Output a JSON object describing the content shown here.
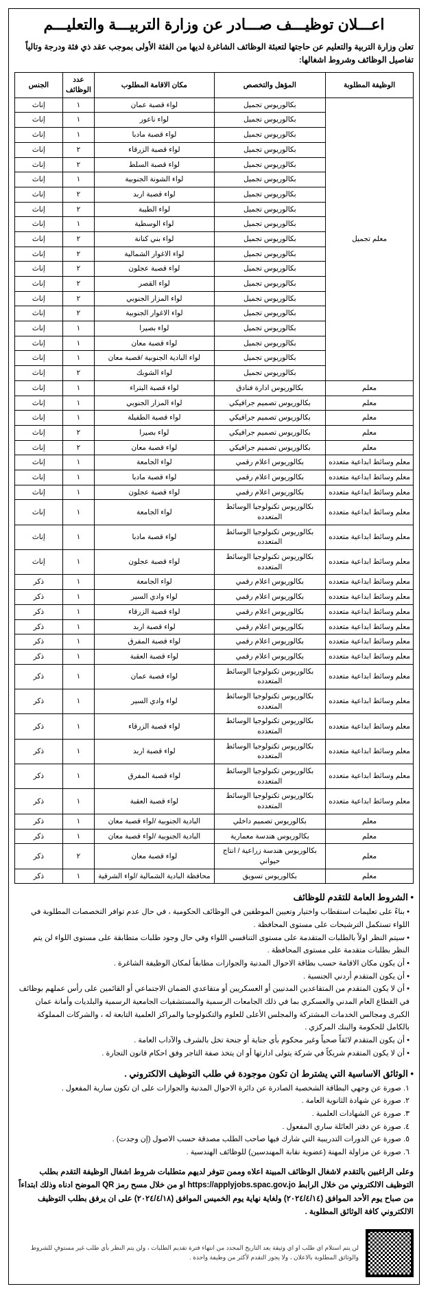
{
  "title": "اعـــلان توظيـــف صـــادر عن وزارة التربيـــة والتعليـــم",
  "intro": "تعلن وزارة التربية والتعليم عن حاجتها لتعبئة الوظائف الشاغرة لديها من الفئة الأولى بموجب عقد ذي فئة ودرجة وتالياً تفاصيل الوظائف وشروط اشغالها:",
  "headers": {
    "position": "الوظيفة المطلوبة",
    "qualification": "المؤهل والتخصص",
    "location": "مكان الاقامة المطلوب",
    "count": "عدد الوظائف",
    "gender": "الجنس"
  },
  "groups": [
    {
      "position": "معلم تجميل",
      "rows": [
        {
          "qual": "بكالوريوس تجميل",
          "loc": "لواء قصبة عمان",
          "cnt": "١",
          "gen": "إناث"
        },
        {
          "qual": "بكالوريوس تجميل",
          "loc": "لواء ناعور",
          "cnt": "١",
          "gen": "إناث"
        },
        {
          "qual": "بكالوريوس تجميل",
          "loc": "لواء قصبة مادبا",
          "cnt": "١",
          "gen": "إناث"
        },
        {
          "qual": "بكالوريوس تجميل",
          "loc": "لواء قصبة الزرقاء",
          "cnt": "٢",
          "gen": "إناث"
        },
        {
          "qual": "بكالوريوس تجميل",
          "loc": "لواء قصبة السلط",
          "cnt": "٢",
          "gen": "إناث"
        },
        {
          "qual": "بكالوريوس تجميل",
          "loc": "لواء الشونة الجنوبية",
          "cnt": "١",
          "gen": "إناث"
        },
        {
          "qual": "بكالوريوس تجميل",
          "loc": "لواء قصبة اربد",
          "cnt": "٢",
          "gen": "إناث"
        },
        {
          "qual": "بكالوريوس تجميل",
          "loc": "لواء الطيبة",
          "cnt": "٢",
          "gen": "إناث"
        },
        {
          "qual": "بكالوريوس تجميل",
          "loc": "لواء الوسطية",
          "cnt": "١",
          "gen": "إناث"
        },
        {
          "qual": "بكالوريوس تجميل",
          "loc": "لواء بني كنانة",
          "cnt": "٢",
          "gen": "إناث"
        },
        {
          "qual": "بكالوريوس تجميل",
          "loc": "لواء الاغوار الشمالية",
          "cnt": "٢",
          "gen": "إناث"
        },
        {
          "qual": "بكالوريوس تجميل",
          "loc": "لواء قصبة عجلون",
          "cnt": "٢",
          "gen": "إناث"
        },
        {
          "qual": "بكالوريوس تجميل",
          "loc": "لواء القصر",
          "cnt": "٢",
          "gen": "إناث"
        },
        {
          "qual": "بكالوريوس تجميل",
          "loc": "لواء المزار الجنوبي",
          "cnt": "٢",
          "gen": "إناث"
        },
        {
          "qual": "بكالوريوس تجميل",
          "loc": "لواء الاغوار الجنوبية",
          "cnt": "٢",
          "gen": "إناث"
        },
        {
          "qual": "بكالوريوس تجميل",
          "loc": "لواء بصيرا",
          "cnt": "١",
          "gen": "إناث"
        },
        {
          "qual": "بكالوريوس تجميل",
          "loc": "لواء قصبة معان",
          "cnt": "١",
          "gen": "إناث"
        },
        {
          "qual": "بكالوريوس تجميل",
          "loc": "لواء البادية الجنوبية /قصبة معان",
          "cnt": "١",
          "gen": "إناث"
        },
        {
          "qual": "بكالوريوس تجميل",
          "loc": "لواء الشوبك",
          "cnt": "٢",
          "gen": "إناث"
        }
      ]
    },
    {
      "position": "معلم",
      "rows": [
        {
          "qual": "بكالوريوس ادارة فنادق",
          "loc": "لواء قصبة البتراء",
          "cnt": "١",
          "gen": "إناث"
        }
      ]
    },
    {
      "position": "معلم",
      "rows": [
        {
          "qual": "بكالوريوس تصميم جرافيكي",
          "loc": "لواء المزار الجنوبي",
          "cnt": "١",
          "gen": "إناث"
        }
      ]
    },
    {
      "position": "معلم",
      "rows": [
        {
          "qual": "بكالوريوس تصميم جرافيكي",
          "loc": "لواء قصبة الطفيلة",
          "cnt": "١",
          "gen": "إناث"
        }
      ]
    },
    {
      "position": "معلم",
      "rows": [
        {
          "qual": "بكالوريوس تصميم جرافيكي",
          "loc": "لواء بصيرا",
          "cnt": "٢",
          "gen": "إناث"
        }
      ]
    },
    {
      "position": "معلم",
      "rows": [
        {
          "qual": "بكالوريوس تصميم جرافيكي",
          "loc": "لواء قصبة معان",
          "cnt": "٢",
          "gen": "إناث"
        }
      ]
    },
    {
      "position": "معلم وسائط ابداعية متعدده",
      "rows": [
        {
          "qual": "بكالوريوس اعلام رقمي",
          "loc": "لواء الجامعة",
          "cnt": "١",
          "gen": "إناث"
        }
      ]
    },
    {
      "position": "معلم وسائط ابداعية متعدده",
      "rows": [
        {
          "qual": "بكالوريوس اعلام رقمي",
          "loc": "لواء قصبة مادبا",
          "cnt": "١",
          "gen": "إناث"
        }
      ]
    },
    {
      "position": "معلم وسائط ابداعية متعدده",
      "rows": [
        {
          "qual": "بكالوريوس اعلام رقمي",
          "loc": "لواء قصبة عجلون",
          "cnt": "١",
          "gen": "إناث"
        }
      ]
    },
    {
      "position": "معلم وسائط ابداعية متعدده",
      "rows": [
        {
          "qual": "بكالوريوس تكنولوجيا الوسائط المتعدده",
          "loc": "لواء الجامعة",
          "cnt": "١",
          "gen": "إناث"
        }
      ]
    },
    {
      "position": "معلم وسائط ابداعية متعدده",
      "rows": [
        {
          "qual": "بكالوريوس تكنولوجيا الوسائط المتعدده",
          "loc": "لواء قصبة مادبا",
          "cnt": "١",
          "gen": "إناث"
        }
      ]
    },
    {
      "position": "معلم وسائط ابداعية متعدده",
      "rows": [
        {
          "qual": "بكالوريوس تكنولوجيا الوسائط المتعدده",
          "loc": "لواء قصبة عجلون",
          "cnt": "١",
          "gen": "إناث"
        }
      ]
    },
    {
      "position": "معلم وسائط ابداعية متعدده",
      "rows": [
        {
          "qual": "بكالوريوس اعلام رقمي",
          "loc": "لواء الجامعة",
          "cnt": "١",
          "gen": "ذكر"
        }
      ]
    },
    {
      "position": "معلم وسائط ابداعية متعدده",
      "rows": [
        {
          "qual": "بكالوريوس اعلام رقمي",
          "loc": "لواء وادي السير",
          "cnt": "١",
          "gen": "ذكر"
        }
      ]
    },
    {
      "position": "معلم وسائط ابداعية متعدده",
      "rows": [
        {
          "qual": "بكالوريوس اعلام رقمي",
          "loc": "لواء قصبة الزرقاء",
          "cnt": "١",
          "gen": "ذكر"
        }
      ]
    },
    {
      "position": "معلم وسائط ابداعية متعدده",
      "rows": [
        {
          "qual": "بكالوريوس اعلام رقمي",
          "loc": "لواء قصبة اربد",
          "cnt": "١",
          "gen": "ذكر"
        }
      ]
    },
    {
      "position": "معلم وسائط ابداعية متعدده",
      "rows": [
        {
          "qual": "بكالوريوس اعلام رقمي",
          "loc": "لواء قصبة المفرق",
          "cnt": "١",
          "gen": "ذكر"
        }
      ]
    },
    {
      "position": "معلم وسائط ابداعية متعدده",
      "rows": [
        {
          "qual": "بكالوريوس اعلام رقمي",
          "loc": "لواء قصبة العقبة",
          "cnt": "١",
          "gen": "ذكر"
        }
      ]
    },
    {
      "position": "معلم وسائط ابداعية متعدده",
      "rows": [
        {
          "qual": "بكالوريوس تكنولوجيا الوسائط المتعدده",
          "loc": "لواء قصبة عمان",
          "cnt": "١",
          "gen": "ذكر"
        }
      ]
    },
    {
      "position": "معلم وسائط ابداعية متعدده",
      "rows": [
        {
          "qual": "بكالوريوس تكنولوجيا الوسائط المتعدده",
          "loc": "لواء وادي السير",
          "cnt": "١",
          "gen": "ذكر"
        }
      ]
    },
    {
      "position": "معلم وسائط ابداعية متعدده",
      "rows": [
        {
          "qual": "بكالوريوس تكنولوجيا الوسائط المتعدده",
          "loc": "لواء قصبة الزرقاء",
          "cnt": "١",
          "gen": "ذكر"
        }
      ]
    },
    {
      "position": "معلم وسائط ابداعية متعدده",
      "rows": [
        {
          "qual": "بكالوريوس تكنولوجيا الوسائط المتعدده",
          "loc": "لواء قصبة اربد",
          "cnt": "١",
          "gen": "ذكر"
        }
      ]
    },
    {
      "position": "معلم وسائط ابداعية متعدده",
      "rows": [
        {
          "qual": "بكالوريوس تكنولوجيا الوسائط المتعدده",
          "loc": "لواء قصبة المفرق",
          "cnt": "١",
          "gen": "ذكر"
        }
      ]
    },
    {
      "position": "معلم وسائط ابداعية متعدده",
      "rows": [
        {
          "qual": "بكالوريوس تكنولوجيا الوسائط المتعدده",
          "loc": "لواء قصبة العقبة",
          "cnt": "١",
          "gen": "ذكر"
        }
      ]
    },
    {
      "position": "معلم",
      "rows": [
        {
          "qual": "بكالوريوس تصميم داخلي",
          "loc": "البادية الجنوبية /لواء قصبة معان",
          "cnt": "١",
          "gen": "ذكر"
        }
      ]
    },
    {
      "position": "معلم",
      "rows": [
        {
          "qual": "بكالوريوس هندسة معمارية",
          "loc": "البادية الجنوبية /لواء قصبة معان",
          "cnt": "١",
          "gen": "ذكر"
        }
      ]
    },
    {
      "position": "معلم",
      "rows": [
        {
          "qual": "بكالوريوس هندسة زراعية / انتاج حيواني",
          "loc": "لواء قصبة معان",
          "cnt": "٢",
          "gen": "ذكر"
        }
      ]
    },
    {
      "position": "معلم",
      "rows": [
        {
          "qual": "بكالوريوس تسويق",
          "loc": "محافظة البادية الشمالية /لواء الشرقية",
          "cnt": "١",
          "gen": "ذكر"
        }
      ]
    }
  ],
  "conditions_title": "• الشروط العامة للتقدم للوظائف",
  "conditions": [
    "بناءً على تعليمات استقطاب واختيار وتعيين الموظفين في الوظائف الحكومية ، في حال عدم توافر التخصصات المطلوبة في اللواء تستكمل الترشيحات على مستوى المحافظة .",
    "سيتم النظر اولاً بالطلبات المتقدمة على مستوى التنافسي اللواء وفي حال وجود طلبات متطابقة على مستوى اللواء لن يتم النظر بطلبات متقدمة على مستوى المحافظة .",
    "أن يكون مكان الاقامة حسب بطاقة الاحوال المدنية والجوازات مطابقاً لمكان الوظيفة الشاغرة .",
    "أن يكون المتقدم أردني الجنسية .",
    "أن لا يكون المتقدم من المتقاعدين المدنيين أو العسكريين أو متقاعدي الضمان الاجتماعي أو القائمين على رأس عملهم بوظائف في القطاع العام المدني والعسكري بما في ذلك الجامعات الرسمية والمستشفيات الجامعية الرسمية والبلديات وأمانة عمان الكبرى ومجالس الخدمات المشتركة والمجلس الأعلى للعلوم والتكنولوجيا والمراكز العلمية التابعة له ، والشركات المملوكة بالكامل للحكومة والبنك المركزي .",
    "أن يكون المتقدم لائقاً صحياً وغير محكوم بأي جناية أو جنحة تخل بالشرف والآداب العامة .",
    "أن لا يكون المتقدم شريكاً في شركة يتولى ادارتها أو ان يتخذ صفة التاجر وفق احكام قانون التجارة ."
  ],
  "docs_title": "• الوثائق الاساسية التي يشترط ان تكون موجودة في طلب التوظيف الالكتروني .",
  "docs": [
    "١. صورة عن وجهي البطاقة الشخصية الصادرة عن دائرة الاحوال المدنية والجوازات على ان تكون سارية المفعول .",
    "٢. صورة عن شهادة الثانوية العامة .",
    "٣. صورة عن الشهادات العلمية .",
    "٤. صورة عن دفتر العائلة ساري المفعول .",
    "٥. صورة عن الدورات التدريبية التي شارك فيها صاحب الطلب مصدقة حسب الاصول (إن وجدت) .",
    "٦. صورة عن مزاولة المهنة (عضوية نقابة المهندسين) للوظائف الهندسية ."
  ],
  "closing": "وعلى الراغبين بالتقدم لاشغال الوظائف المبينة اعلاه وممن تتوفر لديهم متطلبات شروط اشغال الوظيفة التقدم بطلب التوظيف الالكتروني من خلال الرابط https://applyjobs.spac.gov.jo او من خلال مسح رمز QR الموضح ادناه وذلك ابتداءاً من صباح يوم الأحد الموافق (٢٠٢٤/٤/١٤) ولغاية نهاية يوم الخميس الموافق (٢٠٢٤/٤/١٨) على ان يرفق بطلب التوظيف الالكتروني كافة الوثائق المطلوبة .",
  "footnote": "لن يتم استلام اي طلب او اي وثيقة بعد التاريخ المحدد من انتهاء فترة تقديم الطلبات ، ولن يتم النظر بأي طلب غير مستوفٍ للشروط والوثائق المطلوبة بالاعلان ، ولا يجوز التقدم لأكثر من وظيفة واحدة ."
}
